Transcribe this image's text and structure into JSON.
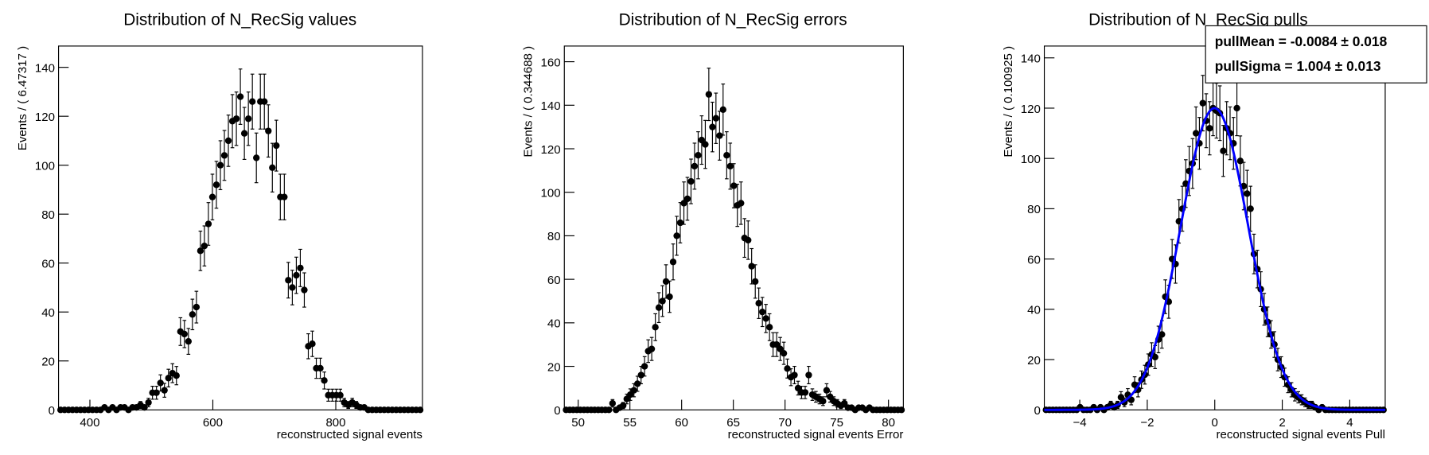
{
  "chart_data": [
    {
      "type": "scatter",
      "title": "Distribution of N_RecSig values",
      "x_label": "reconstructed signal events",
      "y_label": "Events / ( 6.47317 )",
      "error_bars": "poisson",
      "color": "#000000",
      "xlim": [
        349,
        941
      ],
      "ylim": [
        0,
        148.7
      ],
      "xticks": [
        400,
        600,
        800
      ],
      "yticks": [
        0,
        20,
        40,
        60,
        80,
        100,
        120,
        140
      ],
      "x": [
        352.3,
        358.8,
        365.3,
        371.8,
        378.3,
        384.8,
        391.3,
        397.8,
        404.3,
        410.8,
        417.3,
        423.8,
        430.3,
        436.8,
        443.3,
        449.8,
        456.3,
        462.8,
        469.3,
        475.8,
        482.3,
        488.8,
        495.3,
        501.8,
        508.3,
        514.8,
        521.3,
        527.8,
        534.3,
        540.8,
        547.3,
        553.8,
        560.3,
        566.8,
        573.3,
        579.8,
        586.3,
        592.8,
        599.3,
        605.8,
        612.3,
        618.8,
        625.3,
        631.8,
        638.3,
        644.8,
        651.3,
        657.8,
        664.3,
        670.8,
        677.3,
        683.8,
        690.3,
        696.8,
        703.3,
        709.8,
        716.3,
        722.8,
        729.3,
        735.8,
        742.3,
        748.8,
        755.3,
        761.8,
        768.3,
        774.8,
        781.3,
        787.8,
        794.3,
        800.8,
        807.3,
        813.8,
        820.3,
        826.8,
        833.3,
        839.8,
        846.3,
        852.8,
        859.3,
        865.8,
        872.3,
        878.8,
        885.3,
        891.8,
        898.3,
        904.8,
        911.3,
        917.8,
        924.3,
        930.8,
        937.3
      ],
      "values": [
        0,
        0,
        0,
        0,
        0,
        0,
        0,
        0,
        0,
        0,
        0,
        1,
        0,
        1,
        0,
        1,
        1,
        0,
        1,
        1,
        2,
        1,
        3,
        7,
        7,
        11,
        8,
        13,
        15,
        14,
        32,
        31,
        28,
        39,
        42,
        65,
        67,
        76,
        87,
        92,
        100,
        104,
        110,
        118,
        119,
        128,
        113,
        119,
        126,
        103,
        126,
        126,
        114,
        99,
        108,
        87,
        87,
        53,
        50,
        55,
        58,
        49,
        26,
        27,
        17,
        17,
        12,
        6,
        6,
        6,
        6,
        3,
        2,
        3,
        2,
        1,
        1,
        0,
        0,
        0,
        0,
        0,
        0,
        0,
        0,
        0,
        0,
        0,
        0,
        0,
        0
      ]
    },
    {
      "type": "scatter",
      "title": "Distribution of N_RecSig errors",
      "x_label": "reconstructed signal events Error",
      "y_label": "Events / ( 0.344688 )",
      "error_bars": "poisson",
      "color": "#000000",
      "xlim": [
        48.66,
        81.44
      ],
      "ylim": [
        0,
        167.2
      ],
      "xticks": [
        50,
        55,
        60,
        65,
        70,
        75,
        80
      ],
      "yticks": [
        0,
        20,
        40,
        60,
        80,
        100,
        120,
        140,
        160
      ],
      "x": [
        48.83,
        49.18,
        49.52,
        49.87,
        50.21,
        50.56,
        50.9,
        51.25,
        51.59,
        51.94,
        52.28,
        52.63,
        52.97,
        53.32,
        53.66,
        54.01,
        54.35,
        54.7,
        55.04,
        55.39,
        55.73,
        56.08,
        56.42,
        56.77,
        57.11,
        57.46,
        57.8,
        58.15,
        58.49,
        58.84,
        59.18,
        59.53,
        59.87,
        60.22,
        60.56,
        60.91,
        61.25,
        61.6,
        61.94,
        62.29,
        62.63,
        62.98,
        63.32,
        63.67,
        64.01,
        64.36,
        64.7,
        65.05,
        65.39,
        65.74,
        66.08,
        66.43,
        66.77,
        67.12,
        67.46,
        67.81,
        68.15,
        68.5,
        68.84,
        69.19,
        69.53,
        69.88,
        70.22,
        70.57,
        70.91,
        71.26,
        71.6,
        71.95,
        72.29,
        72.64,
        72.98,
        73.33,
        73.67,
        74.02,
        74.36,
        74.71,
        75.05,
        75.4,
        75.74,
        76.09,
        76.43,
        76.78,
        77.12,
        77.47,
        77.81,
        78.16,
        78.5,
        78.85,
        79.19,
        79.54,
        79.88,
        80.23,
        80.57,
        80.92,
        81.26
      ],
      "values": [
        0,
        0,
        0,
        0,
        0,
        0,
        0,
        0,
        0,
        0,
        0,
        0,
        0,
        3,
        0,
        1,
        2,
        5,
        7,
        9,
        12,
        16,
        20,
        27,
        28,
        38,
        47,
        50,
        59,
        52,
        68,
        80,
        86,
        95,
        97,
        105,
        112,
        117,
        124,
        122,
        145,
        130,
        134,
        126,
        138,
        117,
        112,
        103,
        94,
        95,
        79,
        78,
        66,
        59,
        49,
        45,
        42,
        38,
        30,
        30,
        28,
        26,
        19,
        15,
        16,
        10,
        8,
        8,
        16,
        7,
        6,
        5,
        4,
        9,
        6,
        4,
        3,
        2,
        3,
        1,
        1,
        0,
        1,
        1,
        0,
        1,
        0,
        0,
        0,
        0,
        0,
        0,
        0,
        0,
        0
      ]
    },
    {
      "type": "scatter",
      "title": "Distribution of N_RecSig pulls",
      "x_label": "reconstructed signal events Pull",
      "y_label": "Events / ( 0.100925 )",
      "error_bars": "poisson",
      "color": "#000000",
      "xlim": [
        -5.05,
        5.05
      ],
      "ylim": [
        0,
        144.7
      ],
      "xticks": [
        {
          "value": -4,
          "label": "−4"
        },
        {
          "value": -2,
          "label": "−2"
        },
        0,
        2,
        4
      ],
      "yticks": [
        0,
        20,
        40,
        60,
        80,
        100,
        120,
        140
      ],
      "x": [
        -5.0,
        -4.899,
        -4.798,
        -4.697,
        -4.596,
        -4.495,
        -4.394,
        -4.293,
        -4.192,
        -4.091,
        -3.99,
        -3.889,
        -3.788,
        -3.687,
        -3.586,
        -3.485,
        -3.384,
        -3.283,
        -3.182,
        -3.081,
        -2.98,
        -2.879,
        -2.778,
        -2.677,
        -2.576,
        -2.475,
        -2.374,
        -2.273,
        -2.172,
        -2.071,
        -1.97,
        -1.869,
        -1.768,
        -1.667,
        -1.566,
        -1.465,
        -1.364,
        -1.263,
        -1.162,
        -1.061,
        -0.96,
        -0.859,
        -0.758,
        -0.657,
        -0.556,
        -0.455,
        -0.354,
        -0.253,
        -0.152,
        -0.051,
        0.05,
        0.151,
        0.252,
        0.353,
        0.454,
        0.555,
        0.656,
        0.757,
        0.858,
        0.959,
        1.06,
        1.161,
        1.262,
        1.363,
        1.464,
        1.565,
        1.666,
        1.767,
        1.868,
        1.969,
        2.07,
        2.171,
        2.272,
        2.373,
        2.474,
        2.575,
        2.676,
        2.777,
        2.878,
        2.979,
        3.08,
        3.181,
        3.282,
        3.383,
        3.484,
        3.585,
        3.686,
        3.787,
        3.888,
        3.989,
        4.09,
        4.191,
        4.292,
        4.393,
        4.494,
        4.595,
        4.696,
        4.797,
        4.898,
        4.999
      ],
      "values": [
        0,
        0,
        0,
        0,
        0,
        0,
        0,
        0,
        0,
        0,
        1,
        0,
        0,
        0,
        1,
        0,
        1,
        0,
        1,
        2,
        1,
        2,
        5,
        3,
        6,
        4,
        10,
        8,
        12,
        14,
        18,
        22,
        21,
        28,
        30,
        45,
        43,
        60,
        58,
        75,
        80,
        90,
        95,
        98,
        110,
        106,
        122,
        115,
        112,
        120,
        119,
        118,
        103,
        112,
        110,
        106,
        120,
        99,
        89,
        86,
        80,
        62,
        56,
        48,
        40,
        35,
        30,
        26,
        20,
        17,
        13,
        10,
        8,
        6,
        5,
        4,
        3,
        2,
        2,
        1,
        0,
        1,
        0,
        0,
        0,
        0,
        0,
        0,
        0,
        0,
        0,
        0,
        0,
        0,
        0,
        0,
        0,
        0,
        0,
        0
      ],
      "fit": {
        "color": "#0000ff",
        "amplitude": 120,
        "mean": -0.0084,
        "sigma": 1.004
      },
      "stats": [
        "pullMean = -0.0084 ± 0.018",
        "pullSigma =  1.004 ± 0.013"
      ]
    }
  ]
}
